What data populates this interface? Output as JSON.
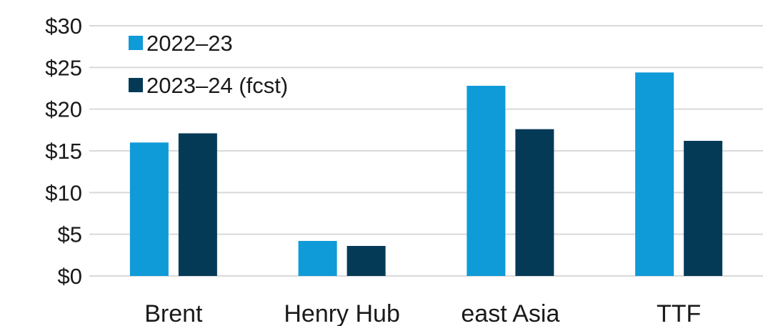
{
  "chart_data": {
    "type": "bar",
    "categories": [
      "Brent",
      "Henry Hub",
      "east Asia",
      "TTF"
    ],
    "series": [
      {
        "name": "2022–23",
        "values": [
          16.0,
          4.2,
          22.8,
          24.4
        ],
        "color": "#0f9ad8"
      },
      {
        "name": "2023–24 (fcst)",
        "values": [
          17.1,
          3.6,
          17.6,
          16.2
        ],
        "color": "#053a57"
      }
    ],
    "y_ticks": [
      "$0",
      "$5",
      "$10",
      "$15",
      "$20",
      "$25",
      "$30"
    ],
    "y_tick_values": [
      0,
      5,
      10,
      15,
      20,
      25,
      30
    ],
    "ylim": [
      0,
      30
    ],
    "grid": true,
    "legend_position": "top-left"
  }
}
